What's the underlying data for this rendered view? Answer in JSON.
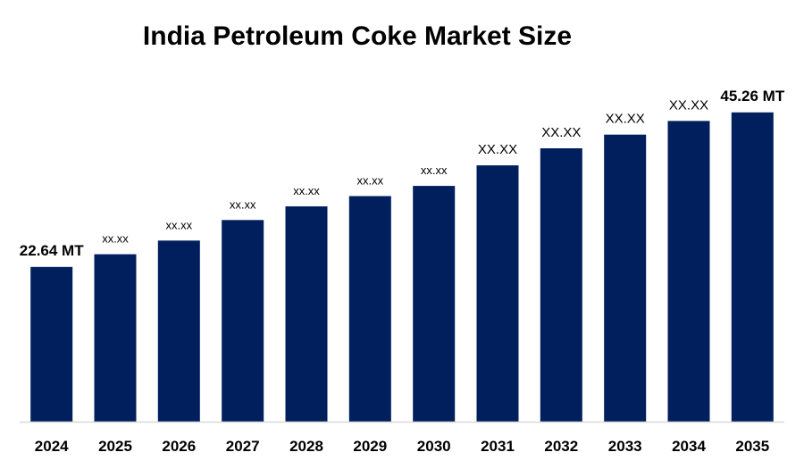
{
  "chart_data": {
    "type": "bar",
    "title": "India Petroleum Coke Market Size",
    "xlabel": "",
    "ylabel": "",
    "ylim": [
      0,
      50
    ],
    "grid": false,
    "legend": "none",
    "bar_color": "#001f5c",
    "axis_color": "#d9d9d9",
    "categories": [
      "2024",
      "2025",
      "2026",
      "2027",
      "2028",
      "2029",
      "2030",
      "2031",
      "2032",
      "2033",
      "2034",
      "2035"
    ],
    "values": [
      22.64,
      24.5,
      26.5,
      29.5,
      31.5,
      33.0,
      34.5,
      37.5,
      40.0,
      42.0,
      44.0,
      45.26
    ],
    "data_labels": [
      "22.64 MT",
      "xx.xx",
      "xx.xx",
      "xx.xx",
      "xx.xx",
      "xx.xx",
      "xx.xx",
      "XX.XX",
      "XX.XX",
      "XX.XX",
      "XX.XX",
      "45.26 MT"
    ]
  }
}
